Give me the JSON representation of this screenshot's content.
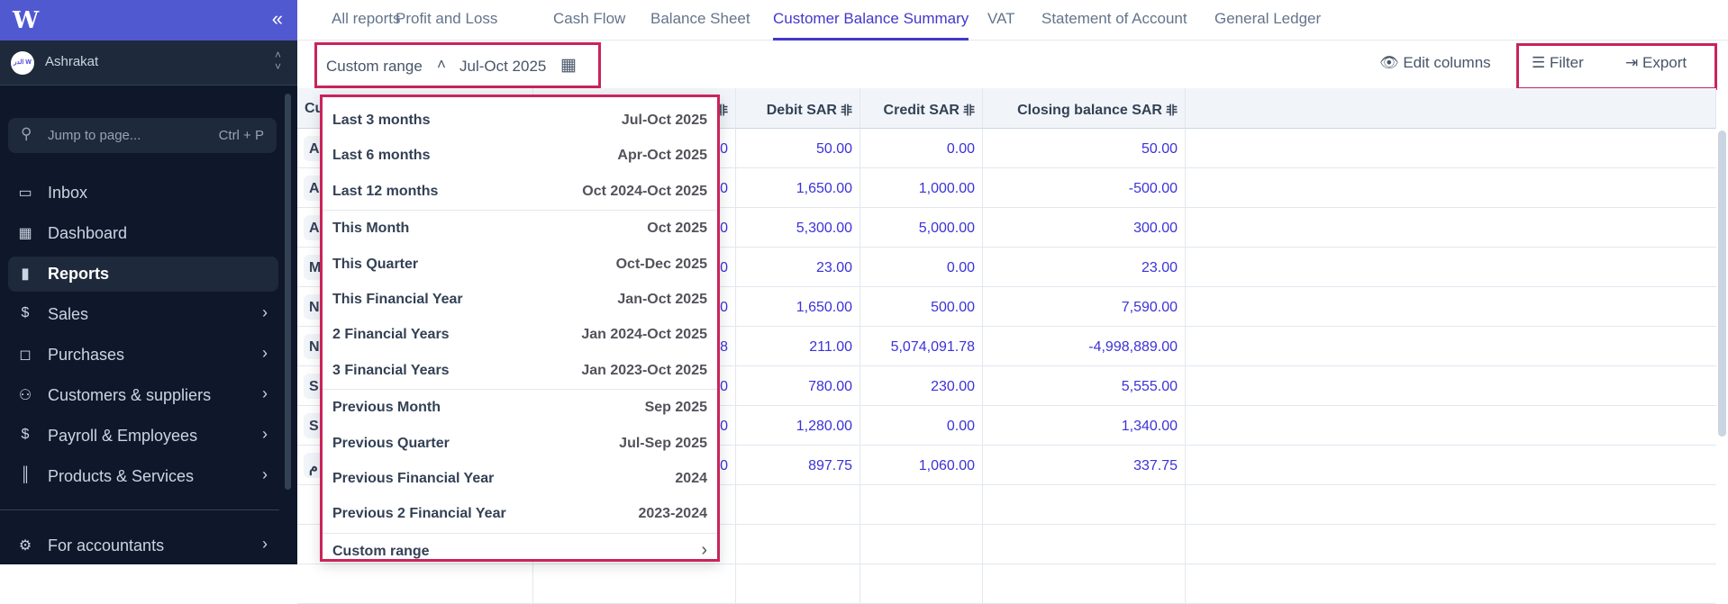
{
  "sidebar": {
    "logo": "W",
    "collapse_icon": "double-chevron-left",
    "account": {
      "name": "Ashrakat",
      "avatar_text": "الدر W"
    },
    "search": {
      "placeholder": "Jump to page...",
      "shortcut": "Ctrl + P"
    },
    "items": [
      {
        "label": "Inbox",
        "icon": "inbox"
      },
      {
        "label": "Dashboard",
        "icon": "dashboard"
      },
      {
        "label": "Reports",
        "icon": "bar-chart",
        "active": true
      },
      {
        "label": "Sales",
        "icon": "dollar-circle",
        "chevron": true
      },
      {
        "label": "Purchases",
        "icon": "shopping-bag",
        "chevron": true
      },
      {
        "label": "Customers & suppliers",
        "icon": "users",
        "chevron": true
      },
      {
        "label": "Payroll & Employees",
        "icon": "payroll",
        "chevron": true
      },
      {
        "label": "Products & Services",
        "icon": "barcode",
        "chevron": true
      }
    ],
    "footer_item": {
      "label": "For accountants",
      "icon": "chart-gear",
      "chevron": true
    }
  },
  "tabs": [
    "All reports",
    "Profit and Loss",
    "Cash Flow",
    "Balance Sheet",
    "Customer Balance Summary",
    "VAT",
    "Statement of Account",
    "General Ledger"
  ],
  "active_tab": "Customer Balance Summary",
  "toolbar": {
    "range_label": "Custom range",
    "range_value": "Jul-Oct 2025",
    "edit_columns": "Edit columns",
    "filter": "Filter",
    "export": "Export"
  },
  "table": {
    "headers": [
      "Cu",
      "",
      "Debit SAR",
      "Credit SAR",
      "Closing balance SAR"
    ],
    "rows": [
      {
        "name": "A",
        "c2": "0",
        "debit": "50.00",
        "credit": "0.00",
        "closing": "50.00"
      },
      {
        "name": "A",
        "c2": "0",
        "debit": "1,650.00",
        "credit": "1,000.00",
        "closing": "-500.00"
      },
      {
        "name": "A",
        "c2": "0",
        "debit": "5,300.00",
        "credit": "5,000.00",
        "closing": "300.00"
      },
      {
        "name": "M",
        "c2": "0",
        "debit": "23.00",
        "credit": "0.00",
        "closing": "23.00"
      },
      {
        "name": "N",
        "c2": "0",
        "debit": "1,650.00",
        "credit": "500.00",
        "closing": "7,590.00"
      },
      {
        "name": "N",
        "c2": "8",
        "debit": "211.00",
        "credit": "5,074,091.78",
        "closing": "-4,998,889.00"
      },
      {
        "name": "S",
        "c2": "0",
        "debit": "780.00",
        "credit": "230.00",
        "closing": "5,555.00"
      },
      {
        "name": "S",
        "c2": "0",
        "debit": "1,280.00",
        "credit": "0.00",
        "closing": "1,340.00"
      },
      {
        "name": "م",
        "c2": "0",
        "debit": "897.75",
        "credit": "1,060.00",
        "closing": "337.75"
      }
    ]
  },
  "dropdown": {
    "groups": [
      [
        {
          "label": "Last 3 months",
          "value": "Jul-Oct 2025"
        },
        {
          "label": "Last 6 months",
          "value": "Apr-Oct 2025"
        },
        {
          "label": "Last 12 months",
          "value": "Oct 2024-Oct 2025"
        }
      ],
      [
        {
          "label": "This Month",
          "value": "Oct 2025"
        },
        {
          "label": "This Quarter",
          "value": "Oct-Dec 2025"
        },
        {
          "label": "This Financial Year",
          "value": "Jan-Oct 2025"
        },
        {
          "label": "2 Financial Years",
          "value": "Jan 2024-Oct 2025"
        },
        {
          "label": "3 Financial Years",
          "value": "Jan 2023-Oct 2025"
        }
      ],
      [
        {
          "label": "Previous Month",
          "value": "Sep 2025"
        },
        {
          "label": "Previous Quarter",
          "value": "Jul-Sep 2025"
        },
        {
          "label": "Previous Financial Year",
          "value": "2024"
        },
        {
          "label": "Previous 2 Financial Year",
          "value": "2023-2024"
        }
      ],
      [
        {
          "label": "Custom range",
          "value": "›"
        }
      ]
    ]
  },
  "colors": {
    "accent": "#4338ca",
    "highlight_border": "#c9245a",
    "sidebar_bg": "#0f172a",
    "sidebar_header": "#5159d1",
    "amount": "#3b32d8"
  }
}
